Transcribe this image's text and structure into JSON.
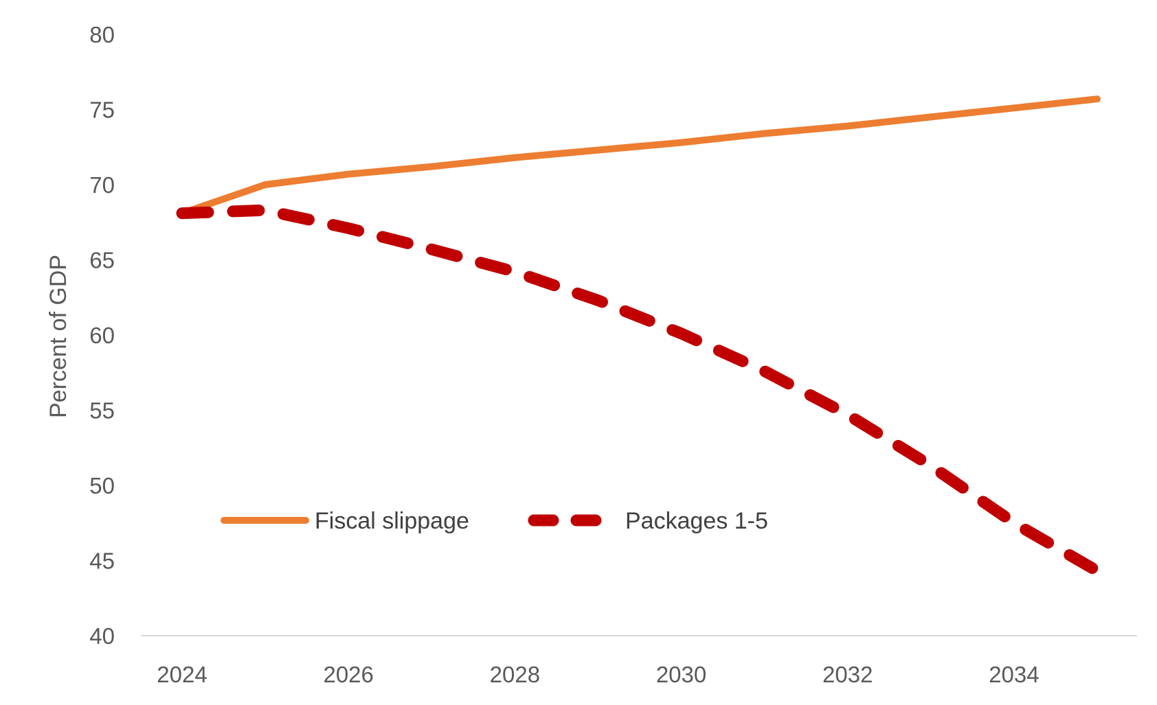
{
  "chart_data": {
    "type": "line",
    "title": "",
    "xlabel": "",
    "ylabel": "Percent of GDP",
    "x": [
      2024,
      2025,
      2026,
      2027,
      2028,
      2029,
      2030,
      2031,
      2032,
      2033,
      2034,
      2035
    ],
    "xlim": [
      2024,
      2035
    ],
    "ylim": [
      40,
      80
    ],
    "x_ticks": [
      2024,
      2026,
      2028,
      2030,
      2032,
      2034
    ],
    "y_ticks": [
      40,
      45,
      50,
      55,
      60,
      65,
      70,
      75,
      80
    ],
    "x_tick_labels": [
      "2024",
      "2026",
      "2028",
      "2030",
      "2032",
      "2034"
    ],
    "y_tick_labels": [
      "40",
      "45",
      "50",
      "55",
      "60",
      "65",
      "70",
      "75",
      "80"
    ],
    "grid": false,
    "legend_position": "bottom-left inside",
    "series": [
      {
        "name": "Fiscal slippage",
        "style": "solid",
        "color": "#ED7D31",
        "values": [
          68.1,
          70.0,
          70.7,
          71.2,
          71.8,
          72.3,
          72.8,
          73.4,
          73.9,
          74.5,
          75.1,
          75.7
        ]
      },
      {
        "name": "Packages 1-5",
        "style": "dashed",
        "color": "#C00000",
        "values": [
          68.1,
          68.3,
          67.1,
          65.7,
          64.2,
          62.3,
          60.1,
          57.6,
          54.7,
          51.3,
          47.5,
          44.3
        ]
      }
    ]
  }
}
